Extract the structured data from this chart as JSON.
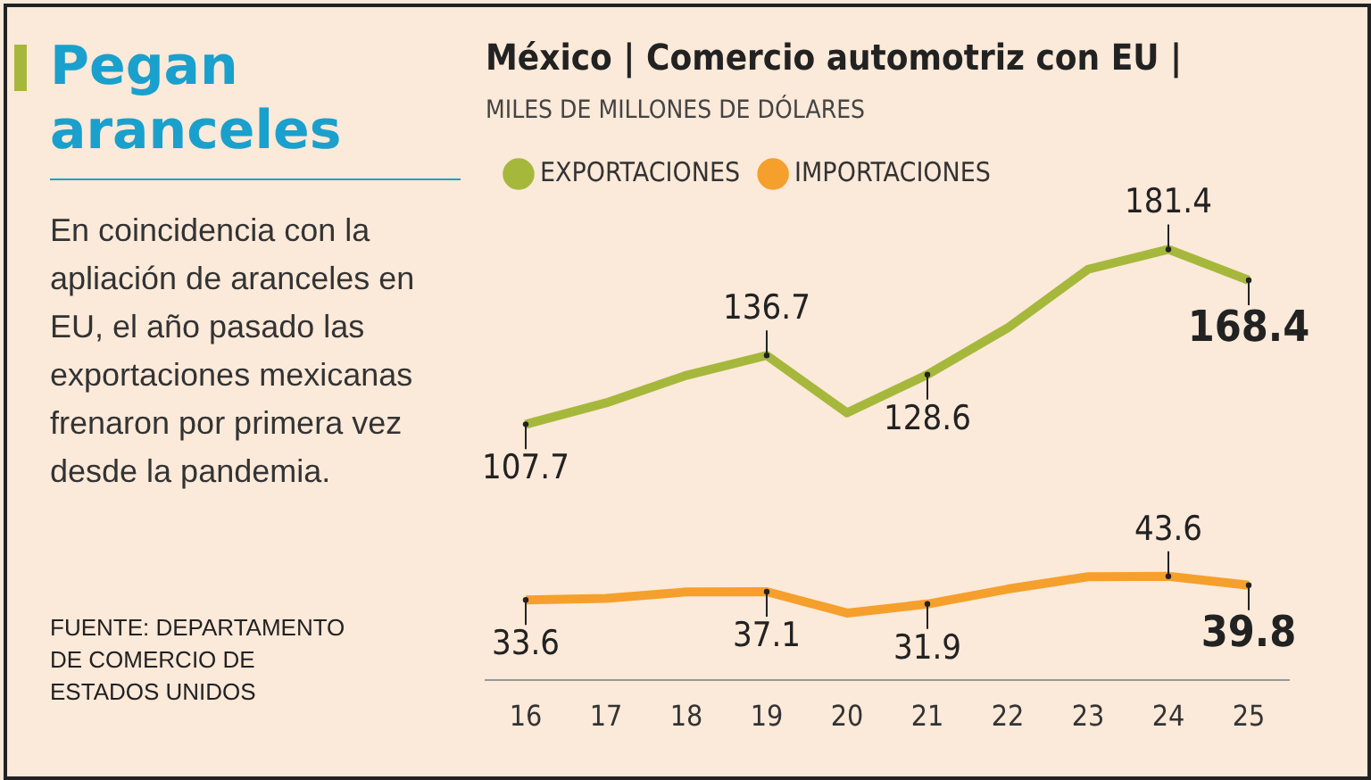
{
  "chart_data": {
    "type": "line",
    "title": "Pegan aranceles",
    "subtitle": "En coincidencia con la apliación de aranceles en EU, el año pasado las exportaciones mexicanas frenaron por primera vez desde la pandemia.",
    "annotations": [
      "México | Comercio automotriz con EU |",
      "MILES DE MILLONES DE DÓLARES",
      "FUENTE: DEPARTAMENTO DE COMERCIO DE ESTADOS UNIDOS"
    ],
    "categories": [
      "16",
      "17",
      "18",
      "19",
      "20",
      "21",
      "22",
      "23",
      "24",
      "25"
    ],
    "series": [
      {
        "name": "EXPORTACIONES",
        "color": "#a6b83c",
        "values": [
          107.7,
          116.7,
          128.3,
          136.7,
          112.5,
          128.6,
          148.3,
          173.0,
          181.4,
          168.4
        ],
        "value_labels": [
          "107.7",
          null,
          null,
          "136.7",
          null,
          "128.6",
          null,
          null,
          "181.4",
          "168.4"
        ]
      },
      {
        "name": "IMPORTACIONES",
        "color": "#f5a02c",
        "values": [
          33.6,
          34.3,
          37.0,
          37.1,
          28.1,
          31.9,
          38.2,
          43.4,
          43.6,
          39.8
        ],
        "value_labels": [
          "33.6",
          null,
          null,
          "37.1",
          null,
          "31.9",
          null,
          null,
          "43.6",
          "39.8"
        ]
      }
    ],
    "grid": false,
    "legend": "top left",
    "line_style": "solid"
  }
}
